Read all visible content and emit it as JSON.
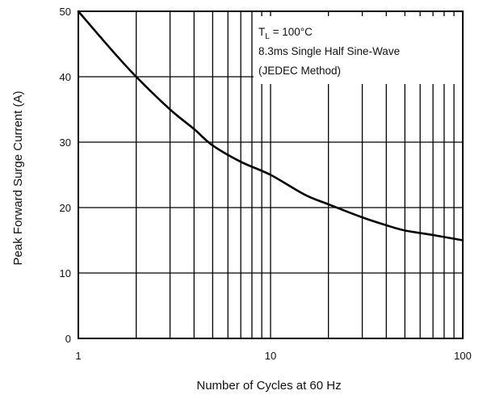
{
  "chart_data": {
    "type": "line",
    "title": "",
    "xlabel": "Number of Cycles at 60 Hz",
    "ylabel": "Peak Forward Surge Current (A)",
    "x_scale": "log",
    "xlim": [
      1,
      100
    ],
    "ylim": [
      0,
      50
    ],
    "x_tick_labels": [
      {
        "value": 1,
        "label": "1"
      },
      {
        "value": 10,
        "label": "10"
      },
      {
        "value": 100,
        "label": "100"
      }
    ],
    "y_tick_labels": [
      {
        "value": 0,
        "label": "0"
      },
      {
        "value": 10,
        "label": "10"
      },
      {
        "value": 20,
        "label": "20"
      },
      {
        "value": 30,
        "label": "30"
      },
      {
        "value": 40,
        "label": "40"
      },
      {
        "value": 50,
        "label": "50"
      }
    ],
    "grid": true,
    "legend": "none",
    "series": [
      {
        "x": [
          1,
          1.5,
          2,
          3,
          4,
          5,
          7,
          10,
          15,
          20,
          30,
          40,
          50,
          70,
          100
        ],
        "values": [
          50,
          44,
          40,
          35,
          32,
          29.5,
          27,
          25,
          22,
          20.5,
          18.5,
          17.3,
          16.5,
          15.8,
          15
        ]
      }
    ],
    "annotations": [
      {
        "main": "T",
        "sub": "L",
        "rest": " = 100°C"
      },
      {
        "text": "8.3ms Single Half Sine-Wave"
      },
      {
        "text": "(JEDEC Method)"
      }
    ],
    "colors": {
      "line": "#000000",
      "grid": "#000000",
      "background": "#ffffff"
    }
  }
}
